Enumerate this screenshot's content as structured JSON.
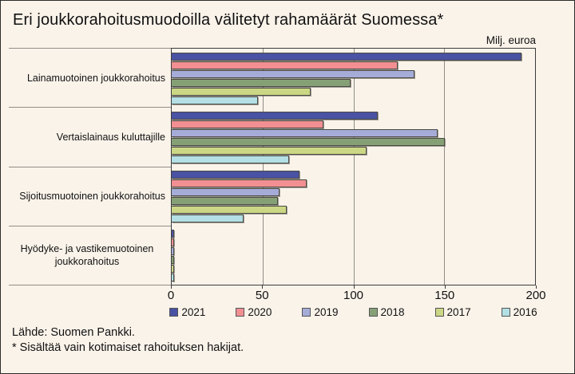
{
  "title": "Eri joukkorahoitusmuodoilla välitetyt rahamäärät Suomessa*",
  "unit_label": "Milj. euroa",
  "footnotes": {
    "source": "Lähde: Suomen Pankki.",
    "note": "* Sisältää vain kotimaiset rahoituksen hakijat."
  },
  "chart_data": {
    "type": "bar",
    "orientation": "horizontal",
    "title": "Eri joukkorahoitusmuodoilla välitetyt rahamäärät Suomessa*",
    "xlabel": "Milj. euroa",
    "ylabel": "",
    "xlim": [
      0,
      200
    ],
    "xticks": [
      0,
      50,
      100,
      150,
      200
    ],
    "grid": true,
    "legend_position": "bottom",
    "categories": [
      "Lainamuotoinen joukkorahoitus",
      "Vertaislainaus kuluttajille",
      "Sijoitusmuotoinen joukkorahoitus",
      "Hyödyke- ja vastikemuotoinen joukkorahoitus"
    ],
    "series": [
      {
        "name": "2021",
        "color": "#4a52a3",
        "values": [
          192,
          113,
          70,
          1
        ]
      },
      {
        "name": "2020",
        "color": "#f28f92",
        "values": [
          124,
          83,
          74,
          1
        ]
      },
      {
        "name": "2019",
        "color": "#a6acd8",
        "values": [
          133,
          146,
          59,
          1
        ]
      },
      {
        "name": "2018",
        "color": "#86a076",
        "values": [
          98,
          150,
          58,
          1
        ]
      },
      {
        "name": "2017",
        "color": "#ccd785",
        "values": [
          76,
          107,
          63,
          1
        ]
      },
      {
        "name": "2016",
        "color": "#b3dfe5",
        "values": [
          47,
          64,
          39,
          1
        ]
      }
    ]
  }
}
